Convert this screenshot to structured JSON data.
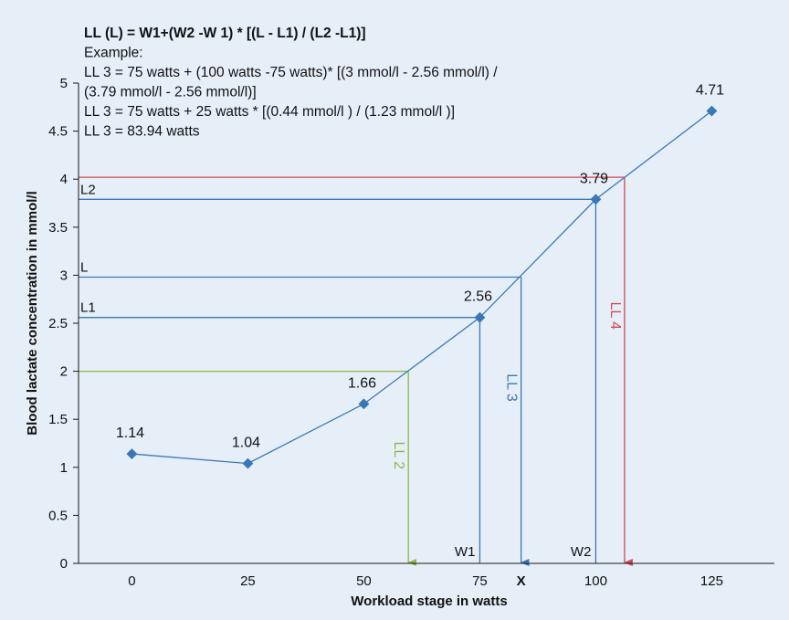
{
  "colors": {
    "background": "#e6eef8",
    "series": "#3a78b5",
    "ll2": "#8bb64a",
    "ll3": "#3a78b5",
    "ll4": "#cf4a4f",
    "axis": "#1a1a1a"
  },
  "chart_data": {
    "type": "line",
    "title": "",
    "xlabel": "Workload stage in watts",
    "ylabel": "Blood lactate concentration in mmol/l",
    "xlim": [
      -11.5,
      138.5
    ],
    "ylim": [
      0,
      5
    ],
    "x_ticks": [
      0,
      25,
      50,
      75,
      100,
      125
    ],
    "y_ticks": [
      "0",
      "0.5",
      "1",
      "1.5",
      "2",
      "2.5",
      "3",
      "3.5",
      "4",
      "4.5",
      "5"
    ],
    "grid": false,
    "series": [
      {
        "x": [
          0,
          25,
          50,
          75,
          100,
          125
        ],
        "y": [
          1.14,
          1.04,
          1.66,
          2.56,
          3.79,
          4.71
        ],
        "labels": [
          "1.14",
          "1.04",
          "1.66",
          "2.56",
          "3.79",
          "4.71"
        ]
      }
    ],
    "guides": [
      {
        "id": "ll2",
        "y": 2,
        "x": 59.6,
        "label": "LL 2",
        "color": "#8bb64a",
        "arrow": true,
        "y_label": ""
      },
      {
        "id": "ll3-L",
        "y": 2.98,
        "x": 83.9,
        "label": "LL 3",
        "color": "#3a78b5",
        "arrow": true,
        "y_label": "L"
      },
      {
        "id": "ll3-L1",
        "y": 2.56,
        "x": 75,
        "label": "",
        "color": "#3a78b5",
        "arrow": false,
        "y_label": "L1"
      },
      {
        "id": "ll3-L2",
        "y": 3.79,
        "x": 100,
        "label": "",
        "color": "#3a78b5",
        "arrow": false,
        "y_label": "L2"
      },
      {
        "id": "ll4",
        "y": 4.02,
        "x": 106.2,
        "label": "LL 4",
        "color": "#cf4a4f",
        "arrow": true,
        "y_label": ""
      }
    ],
    "x_annotations": [
      {
        "x": 75,
        "text": "W1",
        "bold": false
      },
      {
        "x": 83.9,
        "text": "X",
        "bold": true
      },
      {
        "x": 100,
        "text": "W2",
        "bold": false
      }
    ],
    "formula_lines": [
      "LL (L) = W1+(W2 -W 1) * [(L - L1) / (L2 -L1)]",
      "Example:",
      "LL 3 = 75 watts + (100 watts -75 watts)* [(3 mmol/l - 2.56 mmol/l) /",
      "(3.79 mmol/l - 2.56 mmol/l)]",
      "LL 3 = 75 watts + 25 watts * [(0.44 mmol/l ) / (1.23 mmol/l )]",
      "LL 3 = 83.94 watts"
    ]
  }
}
